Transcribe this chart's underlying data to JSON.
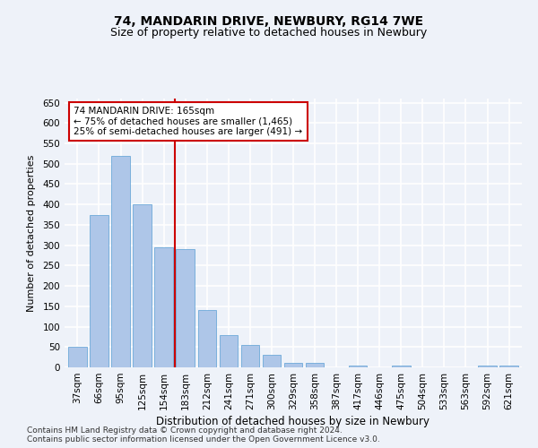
{
  "title1": "74, MANDARIN DRIVE, NEWBURY, RG14 7WE",
  "title2": "Size of property relative to detached houses in Newbury",
  "xlabel": "Distribution of detached houses by size in Newbury",
  "ylabel": "Number of detached properties",
  "categories": [
    "37sqm",
    "66sqm",
    "95sqm",
    "125sqm",
    "154sqm",
    "183sqm",
    "212sqm",
    "241sqm",
    "271sqm",
    "300sqm",
    "329sqm",
    "358sqm",
    "387sqm",
    "417sqm",
    "446sqm",
    "475sqm",
    "504sqm",
    "533sqm",
    "563sqm",
    "592sqm",
    "621sqm"
  ],
  "values": [
    50,
    375,
    520,
    400,
    295,
    290,
    140,
    80,
    55,
    30,
    10,
    12,
    0,
    5,
    0,
    5,
    0,
    0,
    0,
    5,
    5
  ],
  "bar_color": "#aec6e8",
  "bar_edgecolor": "#5a9fd4",
  "vline_x_index": 4.5,
  "vline_color": "#cc0000",
  "annotation_line1": "74 MANDARIN DRIVE: 165sqm",
  "annotation_line2": "← 75% of detached houses are smaller (1,465)",
  "annotation_line3": "25% of semi-detached houses are larger (491) →",
  "annotation_box_color": "#ffffff",
  "annotation_box_edgecolor": "#cc0000",
  "ylim": [
    0,
    660
  ],
  "yticks": [
    0,
    50,
    100,
    150,
    200,
    250,
    300,
    350,
    400,
    450,
    500,
    550,
    600,
    650
  ],
  "footer1": "Contains HM Land Registry data © Crown copyright and database right 2024.",
  "footer2": "Contains public sector information licensed under the Open Government Licence v3.0.",
  "background_color": "#eef2f9",
  "grid_color": "#ffffff",
  "title1_fontsize": 10,
  "title2_fontsize": 9,
  "tick_fontsize": 7.5,
  "xlabel_fontsize": 8.5,
  "ylabel_fontsize": 8,
  "footer_fontsize": 6.5,
  "annotation_fontsize": 7.5
}
